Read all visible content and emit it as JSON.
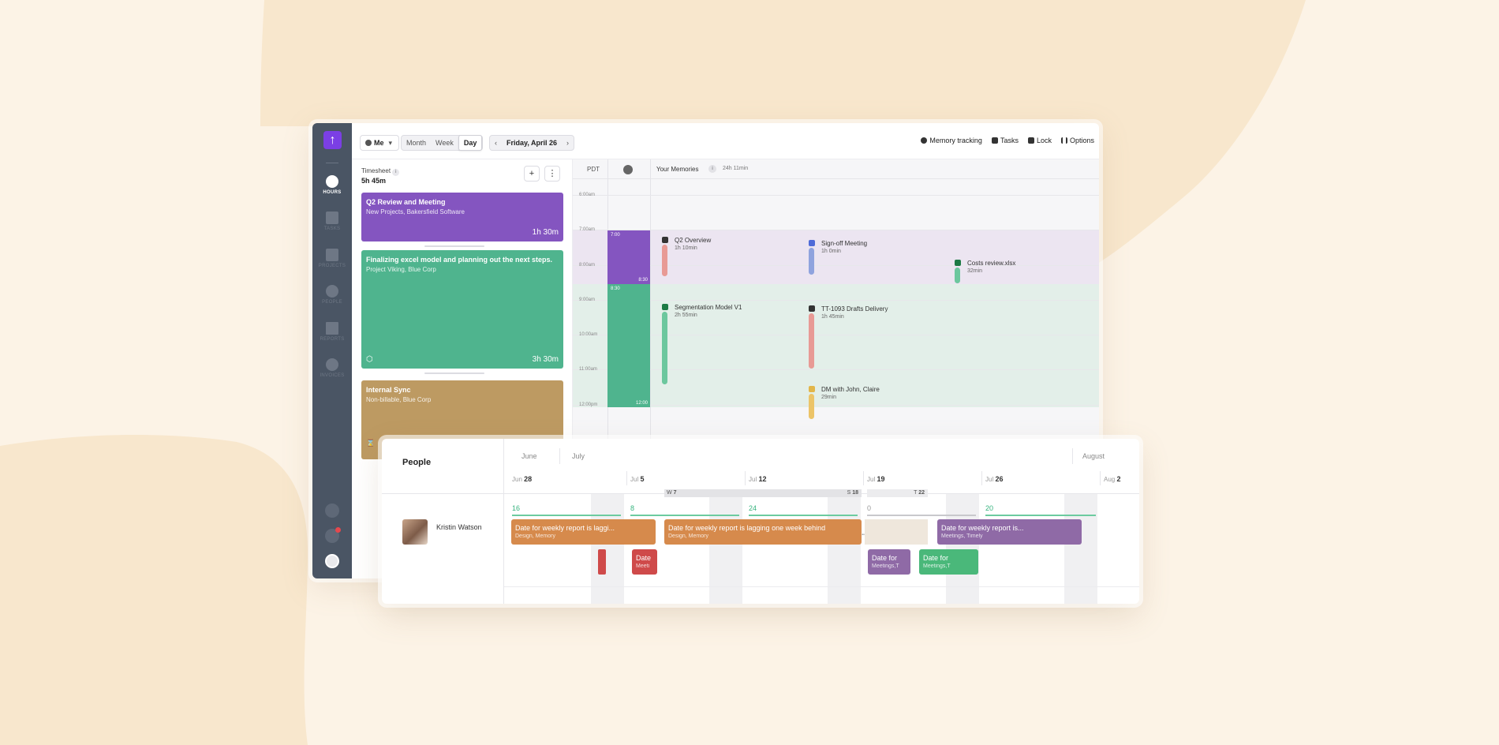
{
  "colors": {
    "purple": "#8455c0",
    "green": "#4fb48e",
    "gold": "#bd9a62",
    "orange": "#d68a4c",
    "violet": "#8f6aa6",
    "mgreen": "#4ab87a",
    "red": "#cf4a4a",
    "brand": "#7b3fe4"
  },
  "sidebar": {
    "items": [
      {
        "label": "HOURS",
        "icon": "clock-icon"
      },
      {
        "label": "TASKS",
        "icon": "clipboard-icon"
      },
      {
        "label": "PROJECTS",
        "icon": "briefcase-icon"
      },
      {
        "label": "PEOPLE",
        "icon": "person-icon"
      },
      {
        "label": "REPORTS",
        "icon": "bar-chart-icon"
      },
      {
        "label": "INVOICES",
        "icon": "dollar-icon"
      }
    ]
  },
  "topbar": {
    "user": "Me",
    "views": [
      "Month",
      "Week",
      "Day"
    ],
    "selected_view": "Day",
    "date": "Friday, April 26",
    "tools": [
      "Memory tracking",
      "Tasks",
      "Lock",
      "Options"
    ]
  },
  "timesheet": {
    "label": "Timesheet",
    "total": "5h 45m",
    "entries": [
      {
        "title": "Q2 Review and Meeting",
        "sub": "New Projects, Bakersfield Software",
        "dur": "1h  30m"
      },
      {
        "title": "Finalizing excel model and planning out the next steps.",
        "sub": "Project Viking, Blue Corp",
        "dur": "3h  30m"
      },
      {
        "title": "Internal Sync",
        "sub": "Non-billable, Blue Corp",
        "dur": ""
      }
    ]
  },
  "calendar": {
    "tz": "PDT",
    "memories_label": "Your Memories",
    "memories_total": "24h 11min",
    "hours": [
      "6:00am",
      "7:00am",
      "8:00am",
      "9:00am",
      "10:00am",
      "11:00am",
      "12:00pm"
    ],
    "blocks": [
      {
        "start": "7:00",
        "end": "8:30"
      },
      {
        "start": "8:30",
        "end": "12:00"
      }
    ],
    "memories": [
      {
        "name": "Q2 Overview",
        "dur": "1h 10min"
      },
      {
        "name": "Sign-off Meeting",
        "dur": "1h 0min"
      },
      {
        "name": "Costs review.xlsx",
        "dur": "32min"
      },
      {
        "name": "Segmentation Model V1",
        "dur": "2h 55min"
      },
      {
        "name": "TT-1093 Drafts Delivery",
        "dur": "1h 45min"
      },
      {
        "name": "DM with John, Claire",
        "dur": "29min"
      }
    ]
  },
  "people": {
    "title": "People",
    "person": "Kristin Watson",
    "months": [
      "June",
      "July",
      "August"
    ],
    "weeks": [
      {
        "m": "Jun",
        "d": "28"
      },
      {
        "m": "Jul",
        "d": "5"
      },
      {
        "m": "Jul",
        "d": "12"
      },
      {
        "m": "Jul",
        "d": "19"
      },
      {
        "m": "Jul",
        "d": "26"
      },
      {
        "m": "Aug",
        "d": "2"
      }
    ],
    "holidays": [
      {
        "p": "W",
        "d": "7"
      },
      {
        "p": "S",
        "d": "18"
      },
      {
        "p": "T",
        "d": "22"
      }
    ],
    "capacity": [
      "16",
      "8",
      "24",
      "0",
      "20"
    ],
    "tasks": [
      {
        "title": "Date for weekly report is laggi...",
        "sub": "Design, Memory"
      },
      {
        "title": "Date for weekly report is lagging one week behind",
        "sub": "Design, Memory"
      },
      {
        "title": "Date for weekly report is...",
        "sub": "Meetings, Timely"
      },
      {
        "title": "Date",
        "sub": "Meeti"
      },
      {
        "title": "Date for",
        "sub": "Meetings,T"
      },
      {
        "title": "Date for",
        "sub": "Meetings,T"
      }
    ]
  }
}
